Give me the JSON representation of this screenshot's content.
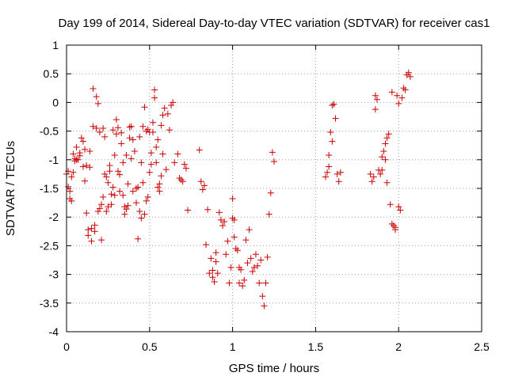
{
  "chart_data": {
    "type": "scatter",
    "title": "Day 199 of 2014, Sidereal Day-to-day VTEC variation (SDTVAR) for receiver cas1",
    "xlabel": "GPS time / hours",
    "ylabel": "SDTVAR / TECUs",
    "xlim": [
      0,
      2.5
    ],
    "ylim": [
      -4,
      1
    ],
    "x_ticks": [
      0,
      0.5,
      1,
      1.5,
      2,
      2.5
    ],
    "x_tick_labels": [
      "0",
      "0.5",
      "1",
      "1.5",
      "2",
      "2.5"
    ],
    "y_ticks": [
      -4,
      -3.5,
      -3,
      -2.5,
      -2,
      -1.5,
      -1,
      -0.5,
      0,
      0.5,
      1
    ],
    "y_tick_labels": [
      "-4",
      "-3.5",
      "-3",
      "-2.5",
      "-2",
      "-1.5",
      "-1",
      "-0.5",
      "0",
      "0.5",
      "1"
    ],
    "grid": true,
    "marker": "+",
    "color": "#cc0000",
    "series": [
      {
        "name": "SDTVAR",
        "points": [
          [
            0.0,
            -1.25
          ],
          [
            0.01,
            -1.47
          ],
          [
            0.01,
            -1.2
          ],
          [
            0.02,
            -1.55
          ],
          [
            0.02,
            -1.68
          ],
          [
            0.03,
            -1.72
          ],
          [
            0.03,
            -1.3
          ],
          [
            0.04,
            -1.22
          ],
          [
            0.04,
            -0.9
          ],
          [
            0.05,
            -1.02
          ],
          [
            0.05,
            -0.98
          ],
          [
            0.06,
            -0.78
          ],
          [
            0.06,
            -1.0
          ],
          [
            0.07,
            -1.0
          ],
          [
            0.08,
            -0.93
          ],
          [
            0.08,
            -0.88
          ],
          [
            0.09,
            -0.62
          ],
          [
            0.1,
            -0.68
          ],
          [
            0.1,
            -1.12
          ],
          [
            0.11,
            -1.37
          ],
          [
            0.11,
            -0.82
          ],
          [
            0.12,
            -1.93
          ],
          [
            0.12,
            -1.1
          ],
          [
            0.13,
            -2.22
          ],
          [
            0.13,
            -2.32
          ],
          [
            0.14,
            -1.13
          ],
          [
            0.14,
            -0.85
          ],
          [
            0.15,
            -2.42
          ],
          [
            0.15,
            -2.2
          ],
          [
            0.16,
            -0.42
          ],
          [
            0.16,
            0.24
          ],
          [
            0.17,
            -2.25
          ],
          [
            0.17,
            -2.14
          ],
          [
            0.18,
            0.1
          ],
          [
            0.18,
            -0.45
          ],
          [
            0.19,
            -1.9
          ],
          [
            0.19,
            -0.02
          ],
          [
            0.2,
            -1.85
          ],
          [
            0.2,
            -0.52
          ],
          [
            0.21,
            -2.4
          ],
          [
            0.21,
            -1.78
          ],
          [
            0.22,
            -1.65
          ],
          [
            0.22,
            -0.45
          ],
          [
            0.23,
            -0.6
          ],
          [
            0.23,
            -1.25
          ],
          [
            0.24,
            -1.3
          ],
          [
            0.24,
            -1.9
          ],
          [
            0.25,
            -1.82
          ],
          [
            0.25,
            -1.4
          ],
          [
            0.26,
            -1.2
          ],
          [
            0.26,
            -1.1
          ],
          [
            0.27,
            -1.78
          ],
          [
            0.27,
            -1.6
          ],
          [
            0.28,
            -1.48
          ],
          [
            0.28,
            -0.48
          ],
          [
            0.29,
            -0.92
          ],
          [
            0.29,
            -1.62
          ],
          [
            0.3,
            -0.3
          ],
          [
            0.3,
            -0.55
          ],
          [
            0.31,
            -0.44
          ],
          [
            0.31,
            -1.2
          ],
          [
            0.32,
            -1.55
          ],
          [
            0.32,
            -1.26
          ],
          [
            0.33,
            -0.72
          ],
          [
            0.33,
            -0.53
          ],
          [
            0.34,
            -1.05
          ],
          [
            0.34,
            -1.62
          ],
          [
            0.35,
            -1.82
          ],
          [
            0.35,
            -1.95
          ],
          [
            0.36,
            -0.92
          ],
          [
            0.36,
            -1.86
          ],
          [
            0.37,
            -1.8
          ],
          [
            0.37,
            -1.42
          ],
          [
            0.38,
            -0.62
          ],
          [
            0.38,
            -0.43
          ],
          [
            0.39,
            -0.98
          ],
          [
            0.39,
            -0.42
          ],
          [
            0.4,
            -1.55
          ],
          [
            0.4,
            -0.65
          ],
          [
            0.41,
            -0.85
          ],
          [
            0.42,
            -1.5
          ],
          [
            0.42,
            -1.75
          ],
          [
            0.43,
            -1.48
          ],
          [
            0.43,
            -2.38
          ],
          [
            0.44,
            -0.6
          ],
          [
            0.44,
            -1.9
          ],
          [
            0.45,
            -1.05
          ],
          [
            0.45,
            -2.02
          ],
          [
            0.46,
            -0.42
          ],
          [
            0.46,
            -1.4
          ],
          [
            0.47,
            -1.95
          ],
          [
            0.47,
            -0.08
          ],
          [
            0.48,
            -0.5
          ],
          [
            0.48,
            -1.72
          ],
          [
            0.49,
            -0.47
          ],
          [
            0.49,
            -1.65
          ],
          [
            0.5,
            -0.52
          ],
          [
            0.5,
            -1.22
          ],
          [
            0.51,
            -1.08
          ],
          [
            0.51,
            -0.88
          ],
          [
            0.52,
            -0.52
          ],
          [
            0.52,
            -0.35
          ],
          [
            0.53,
            0.22
          ],
          [
            0.53,
            0.08
          ],
          [
            0.54,
            -0.78
          ],
          [
            0.54,
            -1.05
          ],
          [
            0.55,
            -0.65
          ],
          [
            0.55,
            -1.48
          ],
          [
            0.56,
            -1.42
          ],
          [
            0.56,
            -1.55
          ],
          [
            0.57,
            -0.4
          ],
          [
            0.57,
            -1.28
          ],
          [
            0.58,
            -0.22
          ],
          [
            0.58,
            -0.9
          ],
          [
            0.59,
            -0.1
          ],
          [
            0.6,
            -1.17
          ],
          [
            0.61,
            -0.2
          ],
          [
            0.62,
            -0.48
          ],
          [
            0.63,
            -0.05
          ],
          [
            0.64,
            0.0
          ],
          [
            0.65,
            -1.05
          ],
          [
            0.67,
            -0.9
          ],
          [
            0.68,
            -1.32
          ],
          [
            0.69,
            -1.35
          ],
          [
            0.7,
            -1.38
          ],
          [
            0.71,
            -1.08
          ],
          [
            0.72,
            -1.15
          ],
          [
            0.73,
            -1.88
          ],
          [
            0.8,
            -0.83
          ],
          [
            0.81,
            -1.38
          ],
          [
            0.82,
            -1.52
          ],
          [
            0.83,
            -1.45
          ],
          [
            0.84,
            -2.48
          ],
          [
            0.85,
            -1.87
          ],
          [
            0.86,
            -2.98
          ],
          [
            0.87,
            -2.72
          ],
          [
            0.88,
            -2.93
          ],
          [
            0.88,
            -3.05
          ],
          [
            0.89,
            -3.13
          ],
          [
            0.9,
            -2.62
          ],
          [
            0.9,
            -2.78
          ],
          [
            0.91,
            -2.98
          ],
          [
            0.92,
            -1.92
          ],
          [
            0.93,
            -2.05
          ],
          [
            0.94,
            -2.15
          ],
          [
            0.95,
            -2.08
          ],
          [
            0.96,
            -2.65
          ],
          [
            0.97,
            -2.42
          ],
          [
            0.98,
            -3.15
          ],
          [
            0.99,
            -2.88
          ],
          [
            1.0,
            -2.02
          ],
          [
            1.0,
            -1.68
          ],
          [
            1.01,
            -2.35
          ],
          [
            1.01,
            -2.05
          ],
          [
            1.02,
            -2.55
          ],
          [
            1.03,
            -2.58
          ],
          [
            1.04,
            -2.88
          ],
          [
            1.04,
            -3.15
          ],
          [
            1.05,
            -2.92
          ],
          [
            1.06,
            -3.2
          ],
          [
            1.07,
            -3.1
          ],
          [
            1.08,
            -2.4
          ],
          [
            1.09,
            -2.8
          ],
          [
            1.1,
            -2.22
          ],
          [
            1.11,
            -2.72
          ],
          [
            1.12,
            -2.95
          ],
          [
            1.13,
            -2.88
          ],
          [
            1.14,
            -2.65
          ],
          [
            1.15,
            -2.85
          ],
          [
            1.16,
            -3.15
          ],
          [
            1.17,
            -2.75
          ],
          [
            1.18,
            -3.38
          ],
          [
            1.19,
            -3.55
          ],
          [
            1.2,
            -3.15
          ],
          [
            1.21,
            -2.7
          ],
          [
            1.22,
            -1.95
          ],
          [
            1.23,
            -1.58
          ],
          [
            1.24,
            -0.87
          ],
          [
            1.25,
            -1.03
          ],
          [
            1.56,
            -1.3
          ],
          [
            1.57,
            -1.22
          ],
          [
            1.58,
            -0.92
          ],
          [
            1.58,
            -1.12
          ],
          [
            1.59,
            -0.52
          ],
          [
            1.6,
            -0.05
          ],
          [
            1.6,
            -0.68
          ],
          [
            1.61,
            -0.03
          ],
          [
            1.62,
            -0.28
          ],
          [
            1.63,
            -1.25
          ],
          [
            1.64,
            -1.38
          ],
          [
            1.65,
            -1.22
          ],
          [
            1.83,
            -1.25
          ],
          [
            1.84,
            -1.38
          ],
          [
            1.85,
            -1.3
          ],
          [
            1.86,
            0.12
          ],
          [
            1.86,
            -0.12
          ],
          [
            1.87,
            0.05
          ],
          [
            1.88,
            -1.18
          ],
          [
            1.89,
            -1.25
          ],
          [
            1.9,
            -1.18
          ],
          [
            1.9,
            -0.95
          ],
          [
            1.91,
            -0.85
          ],
          [
            1.92,
            -1.0
          ],
          [
            1.92,
            -0.72
          ],
          [
            1.93,
            -0.62
          ],
          [
            1.93,
            -1.4
          ],
          [
            1.94,
            -0.55
          ],
          [
            1.95,
            -1.78
          ],
          [
            1.96,
            0.18
          ],
          [
            1.96,
            -2.12
          ],
          [
            1.97,
            -2.15
          ],
          [
            1.98,
            -2.22
          ],
          [
            1.98,
            -2.18
          ],
          [
            1.99,
            0.12
          ],
          [
            2.0,
            -0.02
          ],
          [
            2.0,
            -1.82
          ],
          [
            2.01,
            -1.88
          ],
          [
            2.02,
            0.08
          ],
          [
            2.03,
            0.25
          ],
          [
            2.04,
            0.22
          ],
          [
            2.05,
            0.48
          ],
          [
            2.06,
            0.52
          ],
          [
            2.07,
            0.45
          ]
        ]
      }
    ]
  }
}
